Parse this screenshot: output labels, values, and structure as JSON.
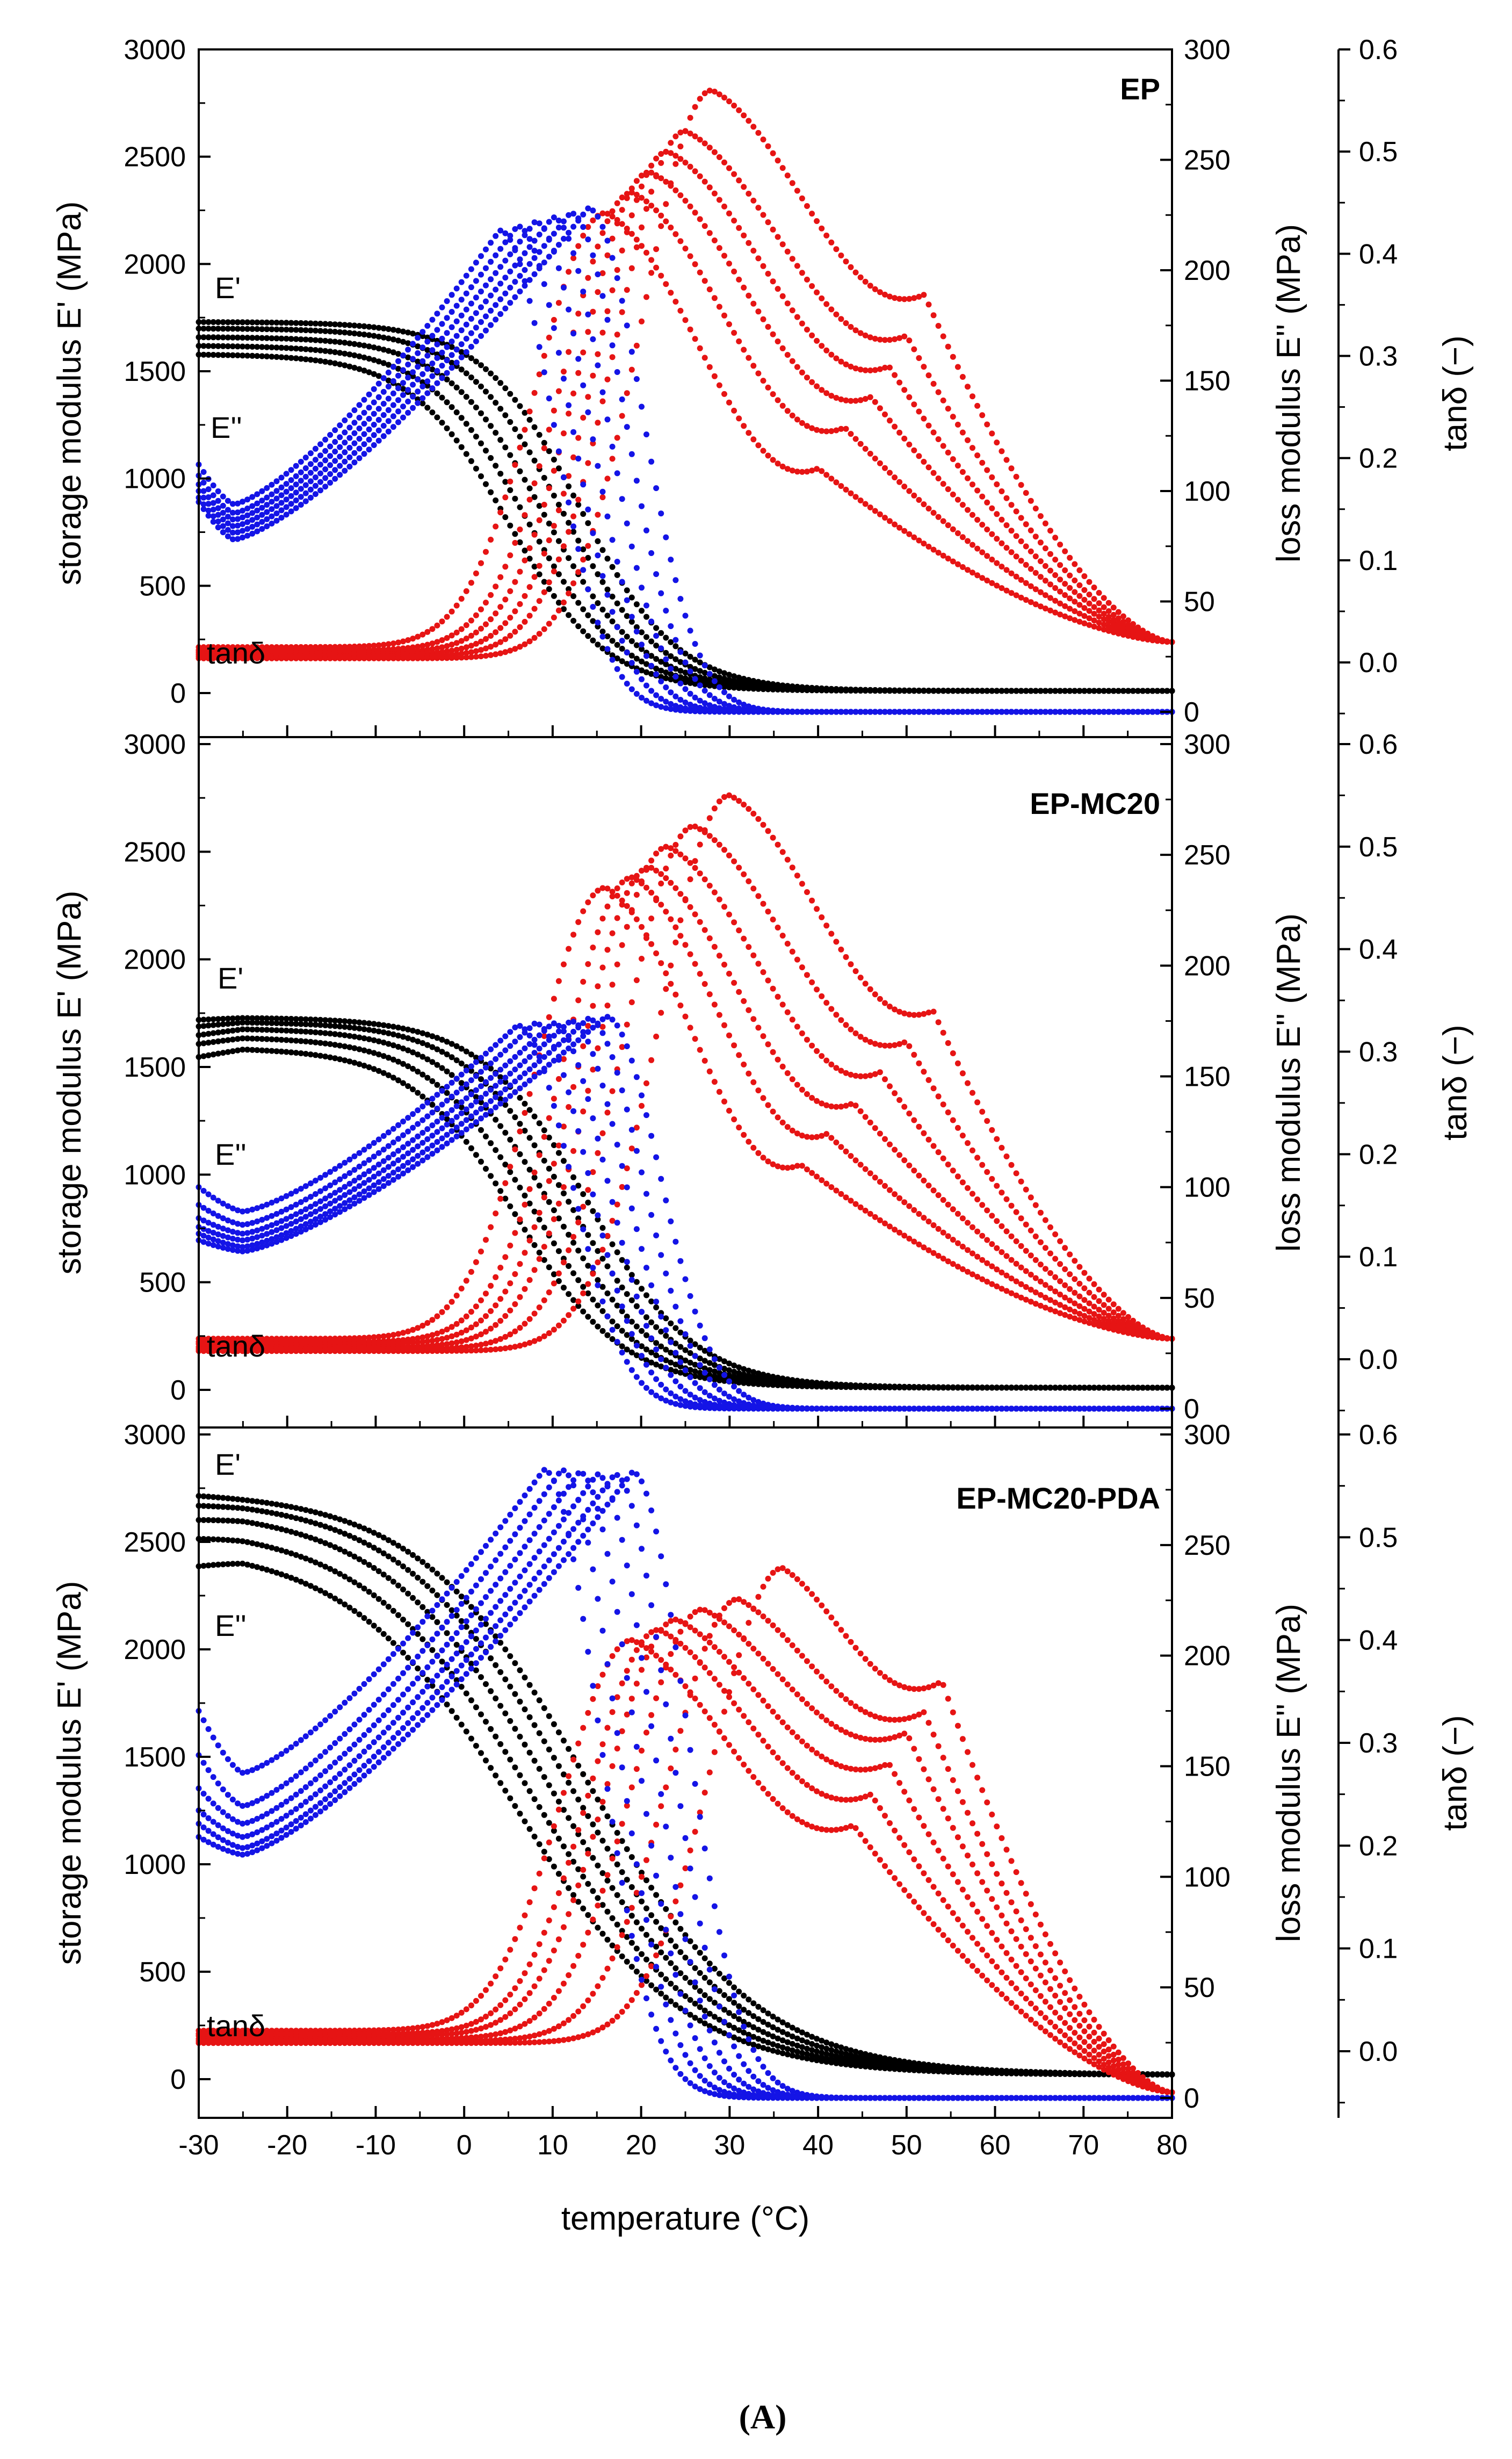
{
  "chart_data": {
    "type": "scatter",
    "caption": "(A)",
    "xlabel": "temperature (°C)",
    "xlim": [
      -30,
      80
    ],
    "x_ticks": [
      "-30",
      "-20",
      "-10",
      "0",
      "10",
      "20",
      "30",
      "40",
      "50",
      "60",
      "70",
      "80"
    ],
    "left_axis": {
      "label": "storage modulus E' (MPa)",
      "ticks": [
        "0",
        "500",
        "1000",
        "1500",
        "2000",
        "2500",
        "3000"
      ],
      "ylim": [
        -100,
        3000
      ]
    },
    "middle_axis": {
      "label": "loss modulus E'' (MPa)",
      "ticks": [
        "0",
        "50",
        "100",
        "150",
        "200",
        "250",
        "300"
      ],
      "ylim": [
        -10,
        300
      ]
    },
    "right_axis": {
      "label": "tanδ (−)",
      "ticks": [
        "0.0",
        "0.1",
        "0.2",
        "0.3",
        "0.4",
        "0.5",
        "0.6"
      ],
      "ylim": [
        -0.07,
        0.6
      ]
    },
    "colors": {
      "storage": "#000000",
      "loss": "#1414e6",
      "tan": "#e61414"
    },
    "panels": [
      {
        "title": "EP",
        "labels": {
          "storage": "E'",
          "loss": "E''",
          "tan": "tanδ"
        },
        "storage": {
          "start": [
            1580,
            1620,
            1660,
            1700,
            1730
          ],
          "plateau": [
            1580,
            1620,
            1660,
            1700,
            1730
          ],
          "drop_center": [
            5,
            7,
            9,
            11,
            13
          ],
          "drop_width": 5.5,
          "end": 10
        },
        "loss": {
          "peak_T": [
            4,
            6,
            8,
            10,
            12,
            14
          ],
          "peak_value": [
            218,
            220,
            222,
            224,
            226,
            228
          ],
          "start_value": [
            112,
            107,
            103,
            100,
            97,
            95
          ],
          "min_value": [
            94,
            90,
            87,
            84,
            81,
            78
          ],
          "min_T": -26,
          "end": 0
        },
        "tan": {
          "peak_T": [
            16,
            19,
            21,
            23,
            25,
            28
          ],
          "peak_value": [
            0.44,
            0.46,
            0.48,
            0.5,
            0.52,
            0.56
          ],
          "start_value": [
            0.015,
            0.012,
            0.01,
            0.008,
            0.006,
            0.004
          ],
          "shoulder_T": [
            40,
            43,
            46,
            48,
            50,
            52
          ],
          "shoulder_value": [
            0.19,
            0.23,
            0.26,
            0.29,
            0.32,
            0.36
          ],
          "end": 0.0
        }
      },
      {
        "title": "EP-MC20",
        "labels": {
          "storage": "E'",
          "loss": "E''",
          "tan": "tanδ"
        },
        "storage": {
          "start": [
            1550,
            1610,
            1650,
            1690,
            1720
          ],
          "plateau": [
            1590,
            1640,
            1680,
            1710,
            1730
          ],
          "drop_center": [
            6,
            8,
            10,
            12,
            14
          ],
          "drop_width": 6.0,
          "end": 10
        },
        "loss": {
          "peak_T": [
            6,
            8,
            10,
            12,
            14,
            16
          ],
          "peak_value": [
            173,
            174,
            174,
            175,
            176,
            177
          ],
          "start_value": [
            100,
            92,
            86,
            82,
            79,
            76
          ],
          "min_value": [
            89,
            83,
            79,
            76,
            73,
            71
          ],
          "min_T": -25,
          "end": 0
        },
        "tan": {
          "peak_T": [
            16,
            19,
            21,
            23,
            26,
            30
          ],
          "peak_value": [
            0.46,
            0.47,
            0.48,
            0.5,
            0.52,
            0.55
          ],
          "start_value": [
            0.02,
            0.017,
            0.015,
            0.012,
            0.01,
            0.008
          ],
          "shoulder_T": [
            38,
            41,
            44,
            47,
            50,
            53
          ],
          "shoulder_value": [
            0.19,
            0.22,
            0.25,
            0.28,
            0.31,
            0.34
          ],
          "end": 0.0
        }
      },
      {
        "title": "EP-MC20-PDA",
        "labels": {
          "storage": "E'",
          "loss": "E''",
          "tan": "tanδ"
        },
        "storage": {
          "start": [
            2440,
            2560,
            2640,
            2700,
            2740
          ],
          "plateau": [
            2490,
            2580,
            2660,
            2710,
            2740
          ],
          "drop_center": [
            6,
            8,
            10,
            12,
            14
          ],
          "drop_width": 9.5,
          "end": 20
        },
        "loss": {
          "peak_T": [
            9,
            11,
            13,
            15,
            17,
            19
          ],
          "peak_value": [
            284,
            284,
            283,
            282,
            282,
            283
          ],
          "start_value": [
            175,
            155,
            140,
            130,
            124,
            118
          ],
          "min_value": [
            147,
            132,
            124,
            118,
            113,
            110
          ],
          "min_T": -25,
          "end": 0
        },
        "tan": {
          "peak_T": [
            19,
            22,
            24,
            27,
            31,
            36
          ],
          "peak_value": [
            0.4,
            0.41,
            0.42,
            0.43,
            0.44,
            0.47
          ],
          "start_value": [
            0.02,
            0.017,
            0.015,
            0.012,
            0.01,
            0.008
          ],
          "shoulder_T": [
            44,
            46,
            48,
            50,
            52,
            54
          ],
          "shoulder_value": [
            0.22,
            0.25,
            0.28,
            0.31,
            0.33,
            0.36
          ],
          "end": -0.06
        }
      }
    ]
  }
}
